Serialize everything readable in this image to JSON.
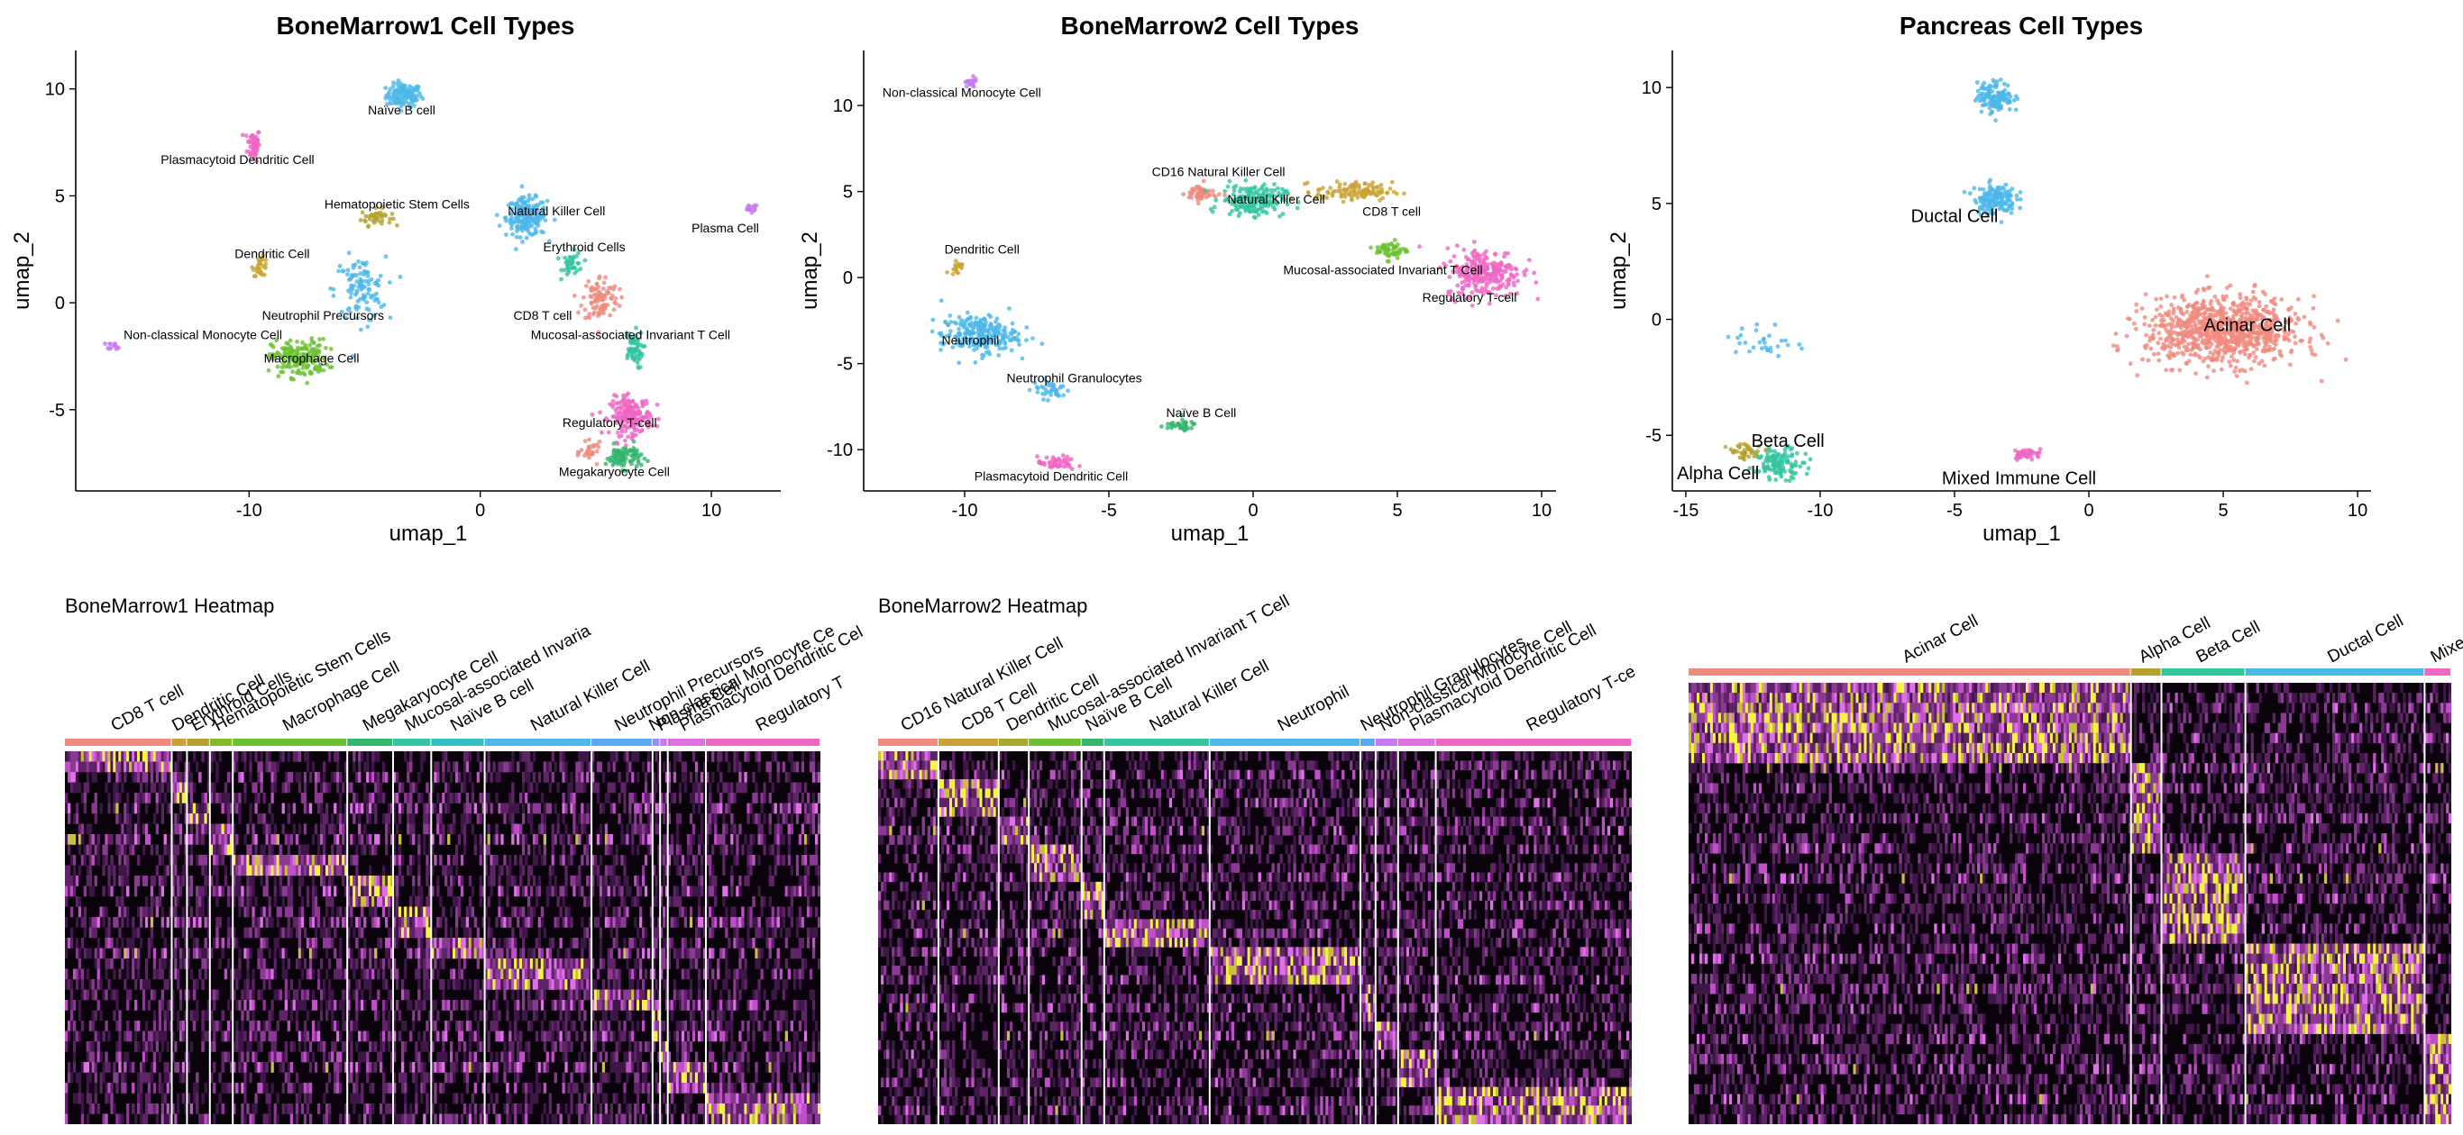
{
  "chart_data": [
    {
      "type": "scatter",
      "title": "BoneMarrow1 Cell Types",
      "xlabel": "umap_1",
      "ylabel": "umap_2",
      "xlim": [
        -17.5,
        13
      ],
      "ylim": [
        -8.8,
        11.8
      ],
      "xticks": [
        -10,
        0,
        10
      ],
      "yticks": [
        -5,
        0,
        5,
        10
      ],
      "label_size": "small",
      "clusters": [
        {
          "name": "Naïve B cell",
          "color": "#4cb8e8",
          "cx": -3.3,
          "cy": 9.7,
          "sx": 0.7,
          "sy": 0.5,
          "n": 120,
          "lx": -3.4,
          "ly": 8.8
        },
        {
          "name": "Plasmacytoid Dendritic Cell",
          "color": "#f066c4",
          "cx": -9.8,
          "cy": 7.4,
          "sx": 0.25,
          "sy": 0.7,
          "n": 60,
          "lx": -10.5,
          "ly": 6.5
        },
        {
          "name": "Hematopoietic Stem Cells",
          "color": "#b5a12d",
          "cx": -4.5,
          "cy": 4.0,
          "sx": 0.6,
          "sy": 0.35,
          "n": 40,
          "lx": -3.6,
          "ly": 4.4
        },
        {
          "name": "Natural Killer Cell",
          "color": "#4cb8e8",
          "cx": 2.0,
          "cy": 4.0,
          "sx": 0.8,
          "sy": 0.8,
          "n": 200,
          "lx": 3.3,
          "ly": 4.1
        },
        {
          "name": "Plasma Cell",
          "color": "#c779f0",
          "cx": 11.7,
          "cy": 4.4,
          "sx": 0.3,
          "sy": 0.2,
          "n": 14,
          "lx": 10.6,
          "ly": 3.3
        },
        {
          "name": "Erythroid Cells",
          "color": "#33c4a0",
          "cx": 4.0,
          "cy": 1.8,
          "sx": 0.4,
          "sy": 0.5,
          "n": 40,
          "lx": 4.5,
          "ly": 2.4
        },
        {
          "name": "Dendritic Cell",
          "color": "#c9a233",
          "cx": -9.5,
          "cy": 1.7,
          "sx": 0.3,
          "sy": 0.4,
          "n": 30,
          "lx": -9.0,
          "ly": 2.1
        },
        {
          "name": "Neutrophil Precursors",
          "color": "#4cb8e8",
          "cx": -5.2,
          "cy": 0.6,
          "sx": 1.0,
          "sy": 1.4,
          "n": 110,
          "lx": -6.8,
          "ly": -0.8
        },
        {
          "name": "CD8 T cell",
          "color": "#f08a7e",
          "cx": 5.2,
          "cy": 0.2,
          "sx": 0.7,
          "sy": 1.0,
          "n": 100,
          "lx": 2.7,
          "ly": -0.8
        },
        {
          "name": "Non-classical Monocyte Cell",
          "color": "#c779f0",
          "cx": -15.8,
          "cy": -2.0,
          "sx": 0.3,
          "sy": 0.15,
          "n": 12,
          "lx": -12.0,
          "ly": -1.7
        },
        {
          "name": "Mucosal-associated Invariant T Cell",
          "color": "#33c4a0",
          "cx": 6.6,
          "cy": -2.2,
          "sx": 0.4,
          "sy": 0.8,
          "n": 60,
          "lx": 6.5,
          "ly": -1.7
        },
        {
          "name": "Macrophage Cell",
          "color": "#6cc130",
          "cx": -7.8,
          "cy": -2.6,
          "sx": 1.1,
          "sy": 0.8,
          "n": 180,
          "lx": -7.3,
          "ly": -2.8
        },
        {
          "name": "Regulatory T-cell",
          "color": "#f066c4",
          "cx": 6.5,
          "cy": -5.3,
          "sx": 0.8,
          "sy": 0.8,
          "n": 200,
          "lx": 5.6,
          "ly": -5.8
        },
        {
          "name": "Megakaryocyte Cell",
          "color": "#33b56e",
          "cx": 6.2,
          "cy": -7.2,
          "sx": 0.7,
          "sy": 0.5,
          "n": 90,
          "lx": 5.8,
          "ly": -8.1
        },
        {
          "name": "Megakaryocyte Cell",
          "color": "#f08a7e",
          "cx": 4.8,
          "cy": -7.0,
          "sx": 0.4,
          "sy": 0.4,
          "n": 30,
          "lx": null,
          "ly": null
        }
      ]
    },
    {
      "type": "scatter",
      "title": "BoneMarrow2 Cell Types",
      "xlabel": "umap_1",
      "ylabel": "umap_2",
      "xlim": [
        -13.5,
        10.5
      ],
      "ylim": [
        -12.4,
        13.2
      ],
      "xticks": [
        -10,
        -5,
        0,
        5,
        10
      ],
      "yticks": [
        -10,
        -5,
        0,
        5,
        10
      ],
      "label_size": "small",
      "clusters": [
        {
          "name": "Non-classical Monocyte Cell",
          "color": "#c779f0",
          "cx": -9.8,
          "cy": 11.3,
          "sx": 0.2,
          "sy": 0.25,
          "n": 25,
          "lx": -10.1,
          "ly": 10.5
        },
        {
          "name": "CD16 Natural Killer Cell",
          "color": "#f08a7e",
          "cx": -1.8,
          "cy": 4.9,
          "sx": 0.5,
          "sy": 0.5,
          "n": 50,
          "lx": -1.2,
          "ly": 5.9
        },
        {
          "name": "Natural Killer Cell",
          "color": "#33c4a0",
          "cx": 0.0,
          "cy": 4.5,
          "sx": 1.0,
          "sy": 0.8,
          "n": 180,
          "lx": 0.8,
          "ly": 4.3
        },
        {
          "name": "CD8 T cell",
          "color": "#c9a233",
          "cx": 3.5,
          "cy": 5.0,
          "sx": 1.2,
          "sy": 0.5,
          "n": 110,
          "lx": 4.8,
          "ly": 3.6
        },
        {
          "name": "Mucosal-associated Invariant T Cell",
          "color": "#6cc130",
          "cx": 4.8,
          "cy": 1.6,
          "sx": 0.5,
          "sy": 0.5,
          "n": 50,
          "lx": 4.5,
          "ly": 0.2
        },
        {
          "name": "Regulatory T-cell",
          "color": "#f066c4",
          "cx": 8.0,
          "cy": 0.3,
          "sx": 1.2,
          "sy": 1.3,
          "n": 260,
          "lx": 7.5,
          "ly": -1.4
        },
        {
          "name": "Dendritic Cell",
          "color": "#c9a233",
          "cx": -10.3,
          "cy": 0.6,
          "sx": 0.2,
          "sy": 0.4,
          "n": 18,
          "lx": -9.4,
          "ly": 1.4
        },
        {
          "name": "Neutrophil",
          "color": "#4cb8e8",
          "cx": -9.5,
          "cy": -3.3,
          "sx": 1.2,
          "sy": 1.0,
          "n": 240,
          "lx": -9.8,
          "ly": -3.9
        },
        {
          "name": "Neutrophil Granulocytes",
          "color": "#4cb8e8",
          "cx": -7.0,
          "cy": -6.5,
          "sx": 0.6,
          "sy": 0.5,
          "n": 40,
          "lx": -6.2,
          "ly": -6.1
        },
        {
          "name": "Naïve B Cell",
          "color": "#33b56e",
          "cx": -2.6,
          "cy": -8.6,
          "sx": 0.6,
          "sy": 0.3,
          "n": 35,
          "lx": -1.8,
          "ly": -8.1
        },
        {
          "name": "Plasmacytoid Dendritic Cell",
          "color": "#f066c4",
          "cx": -6.8,
          "cy": -10.8,
          "sx": 0.6,
          "sy": 0.35,
          "n": 50,
          "lx": -7.0,
          "ly": -11.8
        }
      ]
    },
    {
      "type": "scatter",
      "title": "Pancreas Cell Types",
      "xlabel": "umap_1",
      "ylabel": "umap_2",
      "xlim": [
        -15.5,
        10.5
      ],
      "ylim": [
        -7.4,
        11.6
      ],
      "xticks": [
        -15,
        -10,
        -5,
        0,
        5,
        10
      ],
      "yticks": [
        -5,
        0,
        5,
        10
      ],
      "label_size": "large",
      "clusters": [
        {
          "name": "Ductal Cell",
          "color": "#4cb8e8",
          "cx": -3.5,
          "cy": 9.6,
          "sx": 0.6,
          "sy": 0.6,
          "n": 130,
          "lx": null,
          "ly": null
        },
        {
          "name": "Ductal Cell",
          "color": "#4cb8e8",
          "cx": -3.5,
          "cy": 5.2,
          "sx": 0.7,
          "sy": 0.6,
          "n": 150,
          "lx": -5.0,
          "ly": 4.2
        },
        {
          "name": "Ductal Cell",
          "color": "#4cb8e8",
          "cx": -12.1,
          "cy": -1.0,
          "sx": 1.0,
          "sy": 0.8,
          "n": 30,
          "lx": null,
          "ly": null
        },
        {
          "name": "Acinar Cell",
          "color": "#f08a7e",
          "cx": 5.0,
          "cy": -0.5,
          "sx": 2.6,
          "sy": 1.3,
          "n": 900,
          "lx": 5.9,
          "ly": -0.5
        },
        {
          "name": "Beta Cell",
          "color": "#33c4a0",
          "cx": -11.5,
          "cy": -6.2,
          "sx": 0.8,
          "sy": 0.6,
          "n": 120,
          "lx": -11.2,
          "ly": -5.5
        },
        {
          "name": "Alpha Cell",
          "color": "#b5a12d",
          "cx": -12.8,
          "cy": -5.7,
          "sx": 0.6,
          "sy": 0.3,
          "n": 40,
          "lx": -13.8,
          "ly": -6.9
        },
        {
          "name": "Mixed Immune Cell",
          "color": "#f066c4",
          "cx": -2.3,
          "cy": -5.8,
          "sx": 0.5,
          "sy": 0.2,
          "n": 40,
          "lx": -2.6,
          "ly": -7.1
        }
      ]
    },
    {
      "type": "heatmap",
      "title": "BoneMarrow1 Heatmap",
      "groups": [
        {
          "name": "CD8 T cell",
          "color": "#f08a7e",
          "w": 14
        },
        {
          "name": "Dendritic Cell",
          "color": "#c9a233",
          "w": 2
        },
        {
          "name": "Erythroid Cells",
          "color": "#b5a12d",
          "w": 3
        },
        {
          "name": "Hematopoietic Stem Cells",
          "color": "#88b82a",
          "w": 3
        },
        {
          "name": "Macrophage Cell",
          "color": "#6cc130",
          "w": 15
        },
        {
          "name": "Megakaryocyte Cell",
          "color": "#33b56e",
          "w": 6
        },
        {
          "name": "Mucosal-associated Invaria",
          "color": "#33c4a0",
          "w": 5
        },
        {
          "name": "Naïve B cell",
          "color": "#33bfc4",
          "w": 7
        },
        {
          "name": "Natural Killer Cell",
          "color": "#4cb8e8",
          "w": 14
        },
        {
          "name": "Neutrophil Precursors",
          "color": "#5aa8f0",
          "w": 8
        },
        {
          "name": "Non-classical Monocyte Ce",
          "color": "#9b8cf2",
          "w": 1
        },
        {
          "name": "Plasma Cell",
          "color": "#c779f0",
          "w": 1
        },
        {
          "name": "Plasmacytoid Dendritic Cel",
          "color": "#e070e0",
          "w": 5
        },
        {
          "name": "Regulatory T",
          "color": "#f066c4",
          "w": 15
        }
      ]
    },
    {
      "type": "heatmap",
      "title": "BoneMarrow2 Heatmap",
      "groups": [
        {
          "name": "CD16 Natural Killer Cell",
          "color": "#f08a7e",
          "w": 8
        },
        {
          "name": "CD8 T Cell",
          "color": "#c9a233",
          "w": 8
        },
        {
          "name": "Dendritic Cell",
          "color": "#a8aa2e",
          "w": 4
        },
        {
          "name": "Mucosal-associated Invariant T Cell",
          "color": "#6cc130",
          "w": 7
        },
        {
          "name": "Naïve B Cell",
          "color": "#33b56e",
          "w": 3
        },
        {
          "name": "Natural Killer Cell",
          "color": "#33c4a0",
          "w": 14
        },
        {
          "name": "Neutrophil",
          "color": "#4cb8e8",
          "w": 20
        },
        {
          "name": "Neutrophil Granulocytes",
          "color": "#5aa8f0",
          "w": 2
        },
        {
          "name": "Non-classical Monocyte Cell",
          "color": "#c779f0",
          "w": 3
        },
        {
          "name": "Plasmacytoid Dendritic Cell",
          "color": "#e070e0",
          "w": 5
        },
        {
          "name": "Regulatory T-ce",
          "color": "#f066c4",
          "w": 26
        }
      ]
    },
    {
      "type": "heatmap",
      "title": "",
      "groups": [
        {
          "name": "Acinar Cell",
          "color": "#f08a7e",
          "w": 58
        },
        {
          "name": "Alpha Cell",
          "color": "#b5a12d",
          "w": 4
        },
        {
          "name": "Beta Cell",
          "color": "#33c4a0",
          "w": 11
        },
        {
          "name": "Ductal Cell",
          "color": "#4cb8e8",
          "w": 23.5
        },
        {
          "name": "Mixed",
          "color": "#f066c4",
          "w": 3.5
        }
      ]
    }
  ]
}
